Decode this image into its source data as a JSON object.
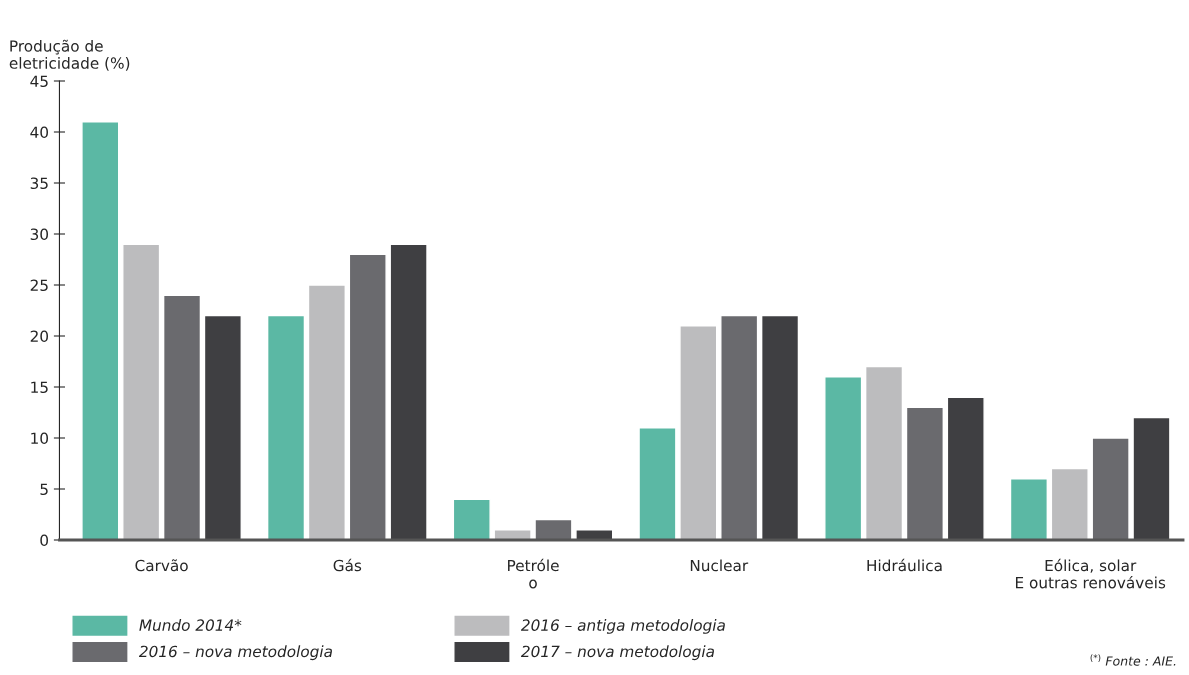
{
  "chart_data": {
    "type": "bar",
    "ylabel": "Produção de\neletricidade (%)",
    "categories": [
      "Carvão",
      "Gás",
      "Petróle\no",
      "Nuclear",
      "Hidráulica",
      "Eólica, solar\nE outras renováveis"
    ],
    "series": [
      {
        "name": "Mundo 2014*",
        "color": "#5bb8a4",
        "values": [
          41,
          22,
          4,
          11,
          16,
          6
        ]
      },
      {
        "name": "2016 – antiga metodologia",
        "color": "#bcbcbe",
        "values": [
          29,
          25,
          1,
          21,
          17,
          7
        ]
      },
      {
        "name": "2016 – nova metodologia",
        "color": "#6a6a6e",
        "values": [
          24,
          28,
          2,
          22,
          13,
          10
        ]
      },
      {
        "name": "2017 – nova metodologia",
        "color": "#3f3f42",
        "values": [
          22,
          29,
          1,
          22,
          14,
          12
        ]
      }
    ],
    "ylim": [
      0,
      45
    ],
    "yticks": [
      0,
      5,
      10,
      15,
      20,
      25,
      30,
      35,
      40,
      45
    ],
    "grid": false,
    "legend": "bottom",
    "annotations": [
      "$^{(*)}$ Fonte : AIE."
    ]
  }
}
